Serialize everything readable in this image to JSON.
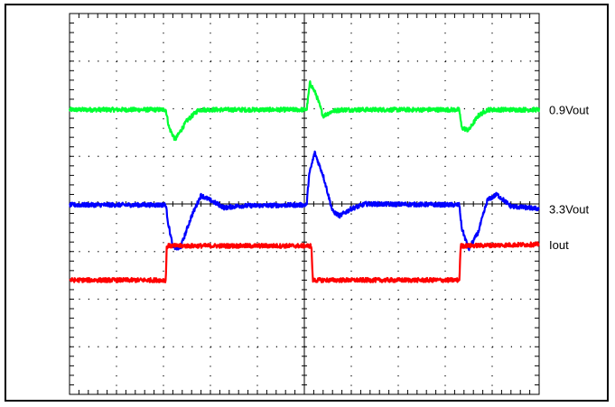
{
  "chart_data": {
    "type": "line",
    "title": "",
    "xlabel": "",
    "ylabel": "",
    "grid": true,
    "x_divisions": 10,
    "y_divisions": 8,
    "xlim": [
      0,
      10
    ],
    "ylim": [
      0,
      8
    ],
    "series": [
      {
        "name": "0.9Vout",
        "color": "#00ff33",
        "points": [
          [
            0,
            5.98
          ],
          [
            2.05,
            5.98
          ],
          [
            2.12,
            5.6
          ],
          [
            2.25,
            5.35
          ],
          [
            2.5,
            5.75
          ],
          [
            2.75,
            5.98
          ],
          [
            5.05,
            5.98
          ],
          [
            5.12,
            6.55
          ],
          [
            5.25,
            6.3
          ],
          [
            5.4,
            5.85
          ],
          [
            5.6,
            5.95
          ],
          [
            5.8,
            5.98
          ],
          [
            8.3,
            5.98
          ],
          [
            8.35,
            5.6
          ],
          [
            8.5,
            5.55
          ],
          [
            8.7,
            5.85
          ],
          [
            8.9,
            5.98
          ],
          [
            10,
            5.98
          ]
        ]
      },
      {
        "name": "3.3Vout",
        "color": "#0000ff",
        "points": [
          [
            0,
            3.98
          ],
          [
            2.05,
            3.98
          ],
          [
            2.1,
            3.6
          ],
          [
            2.2,
            3.1
          ],
          [
            2.35,
            3.05
          ],
          [
            2.6,
            3.75
          ],
          [
            2.8,
            4.18
          ],
          [
            3.05,
            4.05
          ],
          [
            3.3,
            3.92
          ],
          [
            3.6,
            3.96
          ],
          [
            5.05,
            3.98
          ],
          [
            5.1,
            4.6
          ],
          [
            5.22,
            5.08
          ],
          [
            5.4,
            4.6
          ],
          [
            5.6,
            3.85
          ],
          [
            5.75,
            3.75
          ],
          [
            6.0,
            3.9
          ],
          [
            6.3,
            4.0
          ],
          [
            8.3,
            3.98
          ],
          [
            8.35,
            3.5
          ],
          [
            8.5,
            3.05
          ],
          [
            8.7,
            3.4
          ],
          [
            8.9,
            4.08
          ],
          [
            9.1,
            4.2
          ],
          [
            9.4,
            3.95
          ],
          [
            10,
            3.9
          ]
        ]
      },
      {
        "name": "Iout",
        "color": "#ff0000",
        "points": [
          [
            0,
            2.4
          ],
          [
            2.05,
            2.4
          ],
          [
            2.07,
            3.1
          ],
          [
            2.1,
            3.12
          ],
          [
            5.15,
            3.12
          ],
          [
            5.18,
            2.4
          ],
          [
            8.3,
            2.4
          ],
          [
            8.33,
            3.12
          ],
          [
            10,
            3.15
          ]
        ]
      }
    ]
  }
}
